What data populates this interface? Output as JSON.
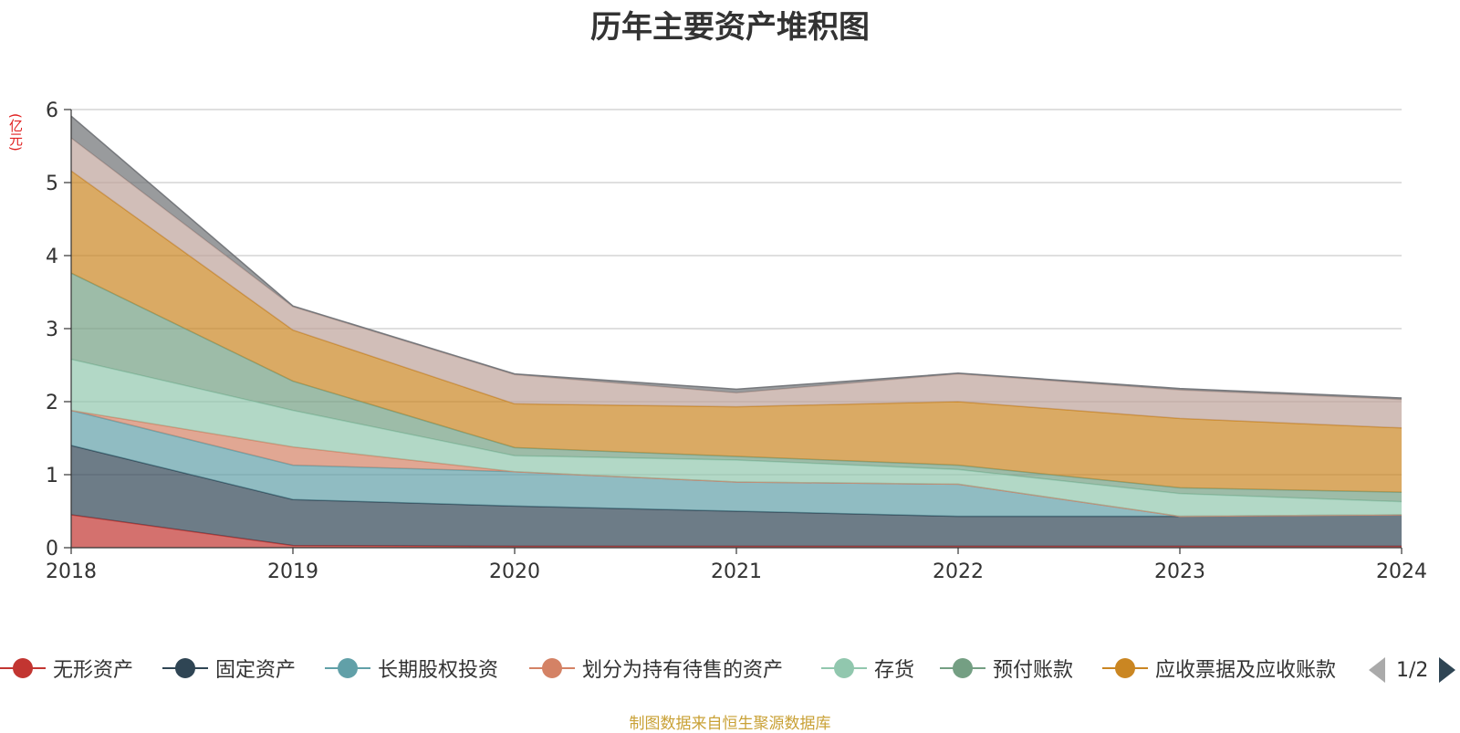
{
  "title": "历年主要资产堆积图",
  "source_note": "制图数据来自恒生聚源数据库",
  "chart_data": {
    "type": "area",
    "stacked": true,
    "title": "历年主要资产堆积图",
    "ylabel": "(亿元)",
    "xlabel": "",
    "categories": [
      "2018",
      "2019",
      "2020",
      "2021",
      "2022",
      "2023",
      "2024"
    ],
    "ylim": [
      0,
      6
    ],
    "yticks": [
      0,
      1,
      2,
      3,
      4,
      5,
      6
    ],
    "grid": true,
    "legend_position": "bottom",
    "series": [
      {
        "name": "无形资产",
        "color": "#c23531",
        "values": [
          0.45,
          0.03,
          0.02,
          0.02,
          0.02,
          0.02,
          0.02
        ]
      },
      {
        "name": "固定资产",
        "color": "#2f4554",
        "values": [
          0.95,
          0.63,
          0.55,
          0.48,
          0.41,
          0.41,
          0.43
        ]
      },
      {
        "name": "长期股权投资",
        "color": "#61a0a8",
        "values": [
          0.48,
          0.47,
          0.47,
          0.4,
          0.44,
          0.0,
          0.0
        ]
      },
      {
        "name": "划分为持有待售的资产",
        "color": "#d48265",
        "values": [
          0.0,
          0.25,
          0.0,
          0.0,
          0.0,
          0.0,
          0.0
        ]
      },
      {
        "name": "存货",
        "color": "#91c7ae",
        "values": [
          0.7,
          0.5,
          0.22,
          0.3,
          0.2,
          0.31,
          0.18
        ]
      },
      {
        "name": "预付账款",
        "color": "#749f83",
        "values": [
          1.18,
          0.4,
          0.11,
          0.05,
          0.06,
          0.08,
          0.13
        ]
      },
      {
        "name": "应收票据及应收账款",
        "color": "#ca8622",
        "values": [
          1.4,
          0.7,
          0.6,
          0.68,
          0.87,
          0.95,
          0.88
        ]
      },
      {
        "name": "",
        "color": "#bda29a",
        "values": [
          0.45,
          0.32,
          0.4,
          0.19,
          0.38,
          0.39,
          0.39
        ]
      },
      {
        "name": "",
        "color": "#6e7074",
        "values": [
          0.3,
          0.01,
          0.01,
          0.05,
          0.01,
          0.02,
          0.02
        ]
      }
    ]
  },
  "legend": {
    "items": [
      {
        "label": "无形资产",
        "color": "#c23531"
      },
      {
        "label": "固定资产",
        "color": "#2f4554"
      },
      {
        "label": "长期股权投资",
        "color": "#61a0a8"
      },
      {
        "label": "划分为持有待售的资产",
        "color": "#d48265"
      },
      {
        "label": "存货",
        "color": "#91c7ae"
      },
      {
        "label": "预付账款",
        "color": "#749f83"
      },
      {
        "label": "应收票据及应收账款",
        "color": "#ca8622"
      }
    ],
    "page_text": "1/2"
  }
}
